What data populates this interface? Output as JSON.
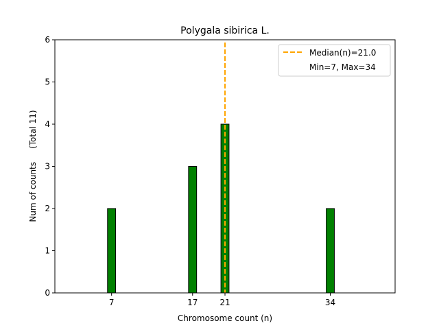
{
  "chart_data": {
    "type": "bar",
    "title": "Polygala sibirica L.",
    "xlabel": "Chromosome count (n)",
    "ylabel": "Num of counts     (Total 11)",
    "xlim": [
      0,
      42
    ],
    "ylim": [
      0,
      6
    ],
    "x_ticks": [
      7,
      17,
      21,
      34
    ],
    "y_ticks": [
      0,
      1,
      2,
      3,
      4,
      5,
      6
    ],
    "x": [
      7,
      17,
      21,
      34
    ],
    "values": [
      2,
      3,
      4,
      2
    ],
    "bar_width": 1,
    "baseline_extent": [
      0,
      37.5
    ],
    "median": 21.0,
    "legend": {
      "placement": "top-right",
      "entries": [
        "Median(n)=21.0",
        "Min=7, Max=34"
      ]
    },
    "colors": {
      "bar": "#008000",
      "bar_edge": "#000000",
      "median": "#FFA500"
    },
    "grid": false
  }
}
